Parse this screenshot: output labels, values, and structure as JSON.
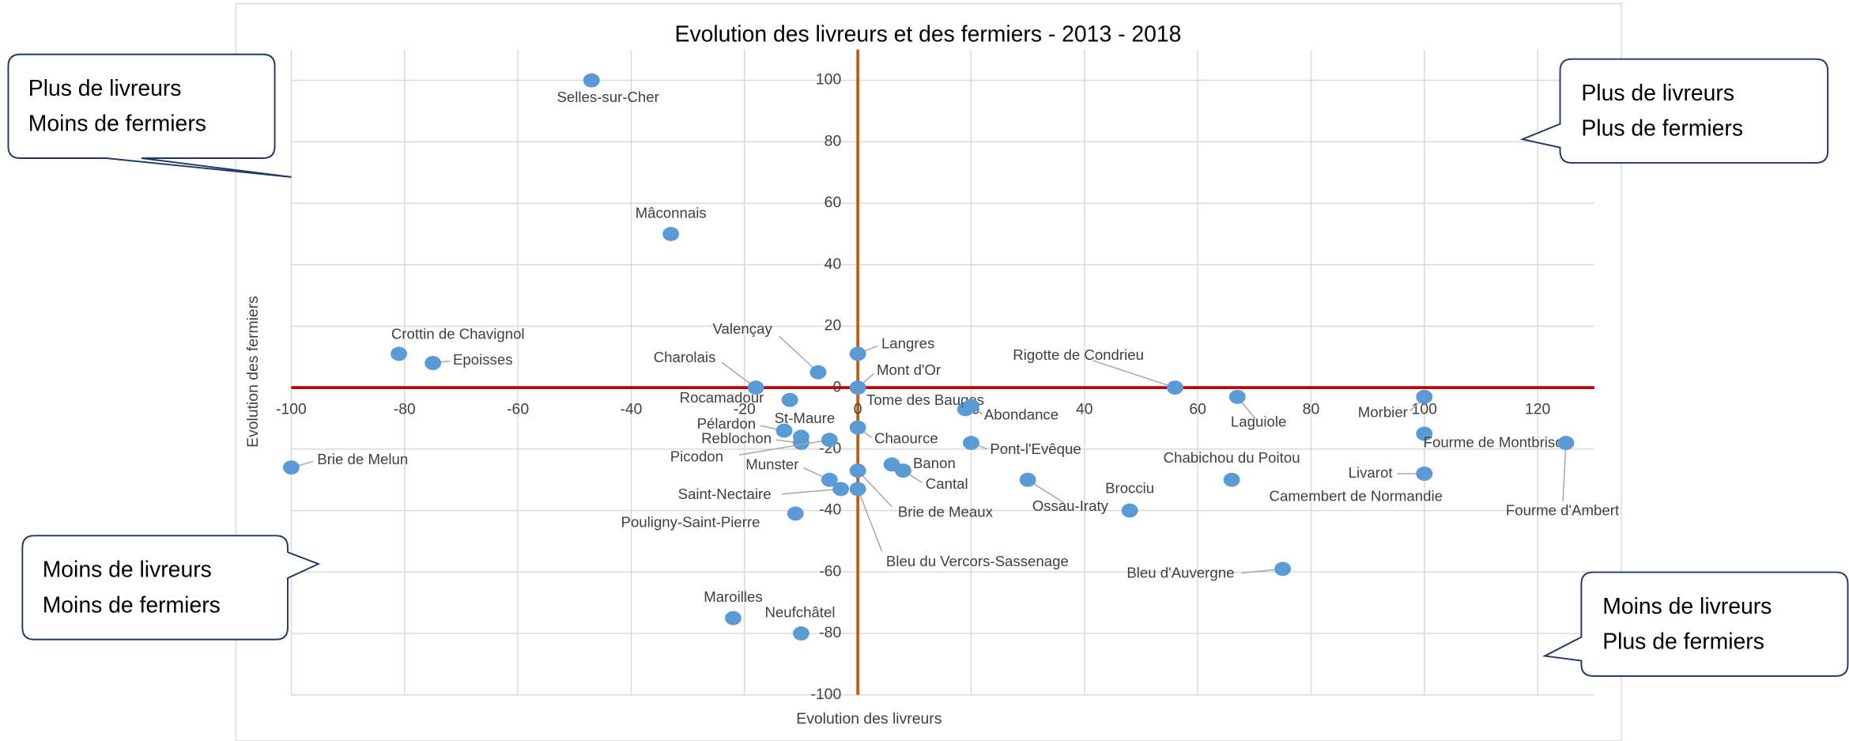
{
  "chart_data": {
    "type": "scatter",
    "title": "Evolution des livreurs et des fermiers - 2013 - 2018",
    "xlabel": "Evolution des livreurs",
    "ylabel": "Evolution des fermiers",
    "color": "#5b9bd5",
    "point_labels": [
      "Selles-sur-Cher",
      "Mâconnais",
      "Crottin de Chavignol",
      "Epoisses",
      "Brie de Melun",
      "Charolais",
      "Valençay",
      "Langres",
      "Mont d'Or",
      "Rocamadour",
      "Pélardon",
      "St-Maure",
      "Reblochon",
      "Picodon",
      "Chaource",
      "Tome des Bauges",
      "Abondance",
      "Pont-l'Evêque",
      "Banon",
      "Cantal",
      "Munster",
      "Saint-Nectaire",
      "Brie de Meaux",
      "Bleu du Vercors-Sassenage",
      "Pouligny-Saint-Pierre",
      "Maroilles",
      "Neufchâtel",
      "Rigotte de Condrieu",
      "Laguiole",
      "Ossau-Iraty",
      "Brocciu",
      "Chabichou du Poitou",
      "Bleu d'Auvergne",
      "Morbier",
      "Fourme de Montbrison",
      "Livarot",
      "Camembert de Normandie",
      "Fourme d'Ambert"
    ],
    "x": [
      -47,
      -33,
      -81,
      -75,
      -100,
      -18,
      -7,
      0,
      0,
      -12,
      -13,
      -10,
      -10,
      -5,
      0,
      19,
      20,
      20,
      6,
      8,
      -5,
      -3,
      0,
      0,
      -11,
      -22,
      -10,
      56,
      67,
      30,
      48,
      66,
      75,
      100,
      100,
      100,
      100,
      125
    ],
    "values": [
      100,
      50,
      11,
      8,
      -26,
      0,
      5,
      11,
      0,
      -4,
      -14,
      -16,
      -18,
      -17,
      -13,
      -7,
      -6,
      -18,
      -25,
      -27,
      -30,
      -33,
      -27,
      -33,
      -41,
      -75,
      -80,
      0,
      -3,
      -30,
      -40,
      -30,
      -59,
      -3,
      -15,
      -28,
      -28,
      -18
    ],
    "xlim": [
      -100,
      130
    ],
    "ylim": [
      -100,
      110
    ],
    "xticks": [
      -100,
      -80,
      -60,
      -40,
      -20,
      0,
      20,
      40,
      60,
      80,
      100,
      120
    ],
    "yticks": [
      -100,
      -80,
      -60,
      -40,
      -20,
      0,
      20,
      40,
      60,
      80,
      100
    ],
    "grid": true,
    "annotations": [
      [
        "Plus de livreurs",
        "Moins de fermiers"
      ],
      [
        "Plus de livreurs",
        "Plus de fermiers"
      ],
      [
        "Moins de livreurs",
        "Moins de fermiers"
      ],
      [
        "Moins de livreurs",
        "Plus de fermiers"
      ]
    ]
  }
}
